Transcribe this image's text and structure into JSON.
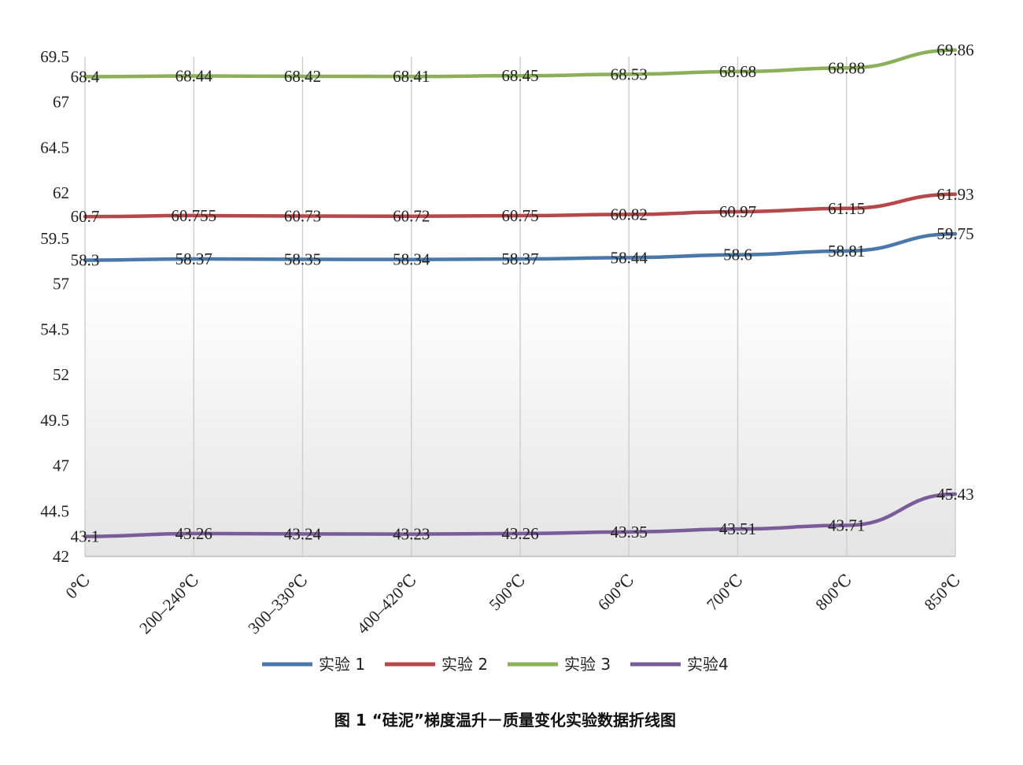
{
  "chart_data": {
    "type": "line",
    "title": "",
    "caption": "图 1 “硅泥”梯度温升－质量变化实验数据折线图",
    "xlabel": "",
    "ylabel": "",
    "categories": [
      "0℃",
      "200–240℃",
      "300–330℃",
      "400–420℃",
      "500℃",
      "600℃",
      "700℃",
      "800℃",
      "850℃"
    ],
    "ylim": [
      42,
      69.5
    ],
    "yticks": [
      42,
      44.5,
      47,
      49.5,
      52,
      54.5,
      57,
      59.5,
      62,
      64.5,
      67,
      69.5
    ],
    "ytick_labels": [
      "42",
      "44.5",
      "47",
      "49.5",
      "52",
      "54.5",
      "57",
      "59.5",
      "62",
      "64.5",
      "67",
      "69.5"
    ],
    "grid": "vertical",
    "legend_position": "bottom",
    "series": [
      {
        "name": "实验 1",
        "color": "#4a78a8",
        "values": [
          58.3,
          58.37,
          58.35,
          58.34,
          58.37,
          58.44,
          58.6,
          58.81,
          59.75
        ],
        "labels": [
          "58.3",
          "58.37",
          "58.35",
          "58.34",
          "58.37",
          "58.44",
          "58.6",
          "58.81",
          "59.75"
        ]
      },
      {
        "name": "实验 2",
        "color": "#b5484a",
        "values": [
          60.7,
          60.755,
          60.73,
          60.72,
          60.75,
          60.82,
          60.97,
          61.15,
          61.93
        ],
        "labels": [
          "60.7",
          "60.755",
          "60.73",
          "60.72",
          "60.75",
          "60.82",
          "60.97",
          "61.15",
          "61.93"
        ]
      },
      {
        "name": "实验 3",
        "color": "#8caf5a",
        "values": [
          68.4,
          68.44,
          68.42,
          68.41,
          68.45,
          68.53,
          68.68,
          68.88,
          69.86
        ],
        "labels": [
          "68.4",
          "68.44",
          "68.42",
          "68.41",
          "68.45",
          "68.53",
          "68.68",
          "68.88",
          "69.86"
        ]
      },
      {
        "name": "实验4",
        "color": "#7a5c98",
        "values": [
          43.1,
          43.26,
          43.24,
          43.23,
          43.26,
          43.35,
          43.51,
          43.71,
          45.43
        ],
        "labels": [
          "43.1",
          "43.26",
          "43.24",
          "43.23",
          "43.26",
          "43.35",
          "43.51",
          "43.71",
          "45.43"
        ]
      }
    ]
  }
}
